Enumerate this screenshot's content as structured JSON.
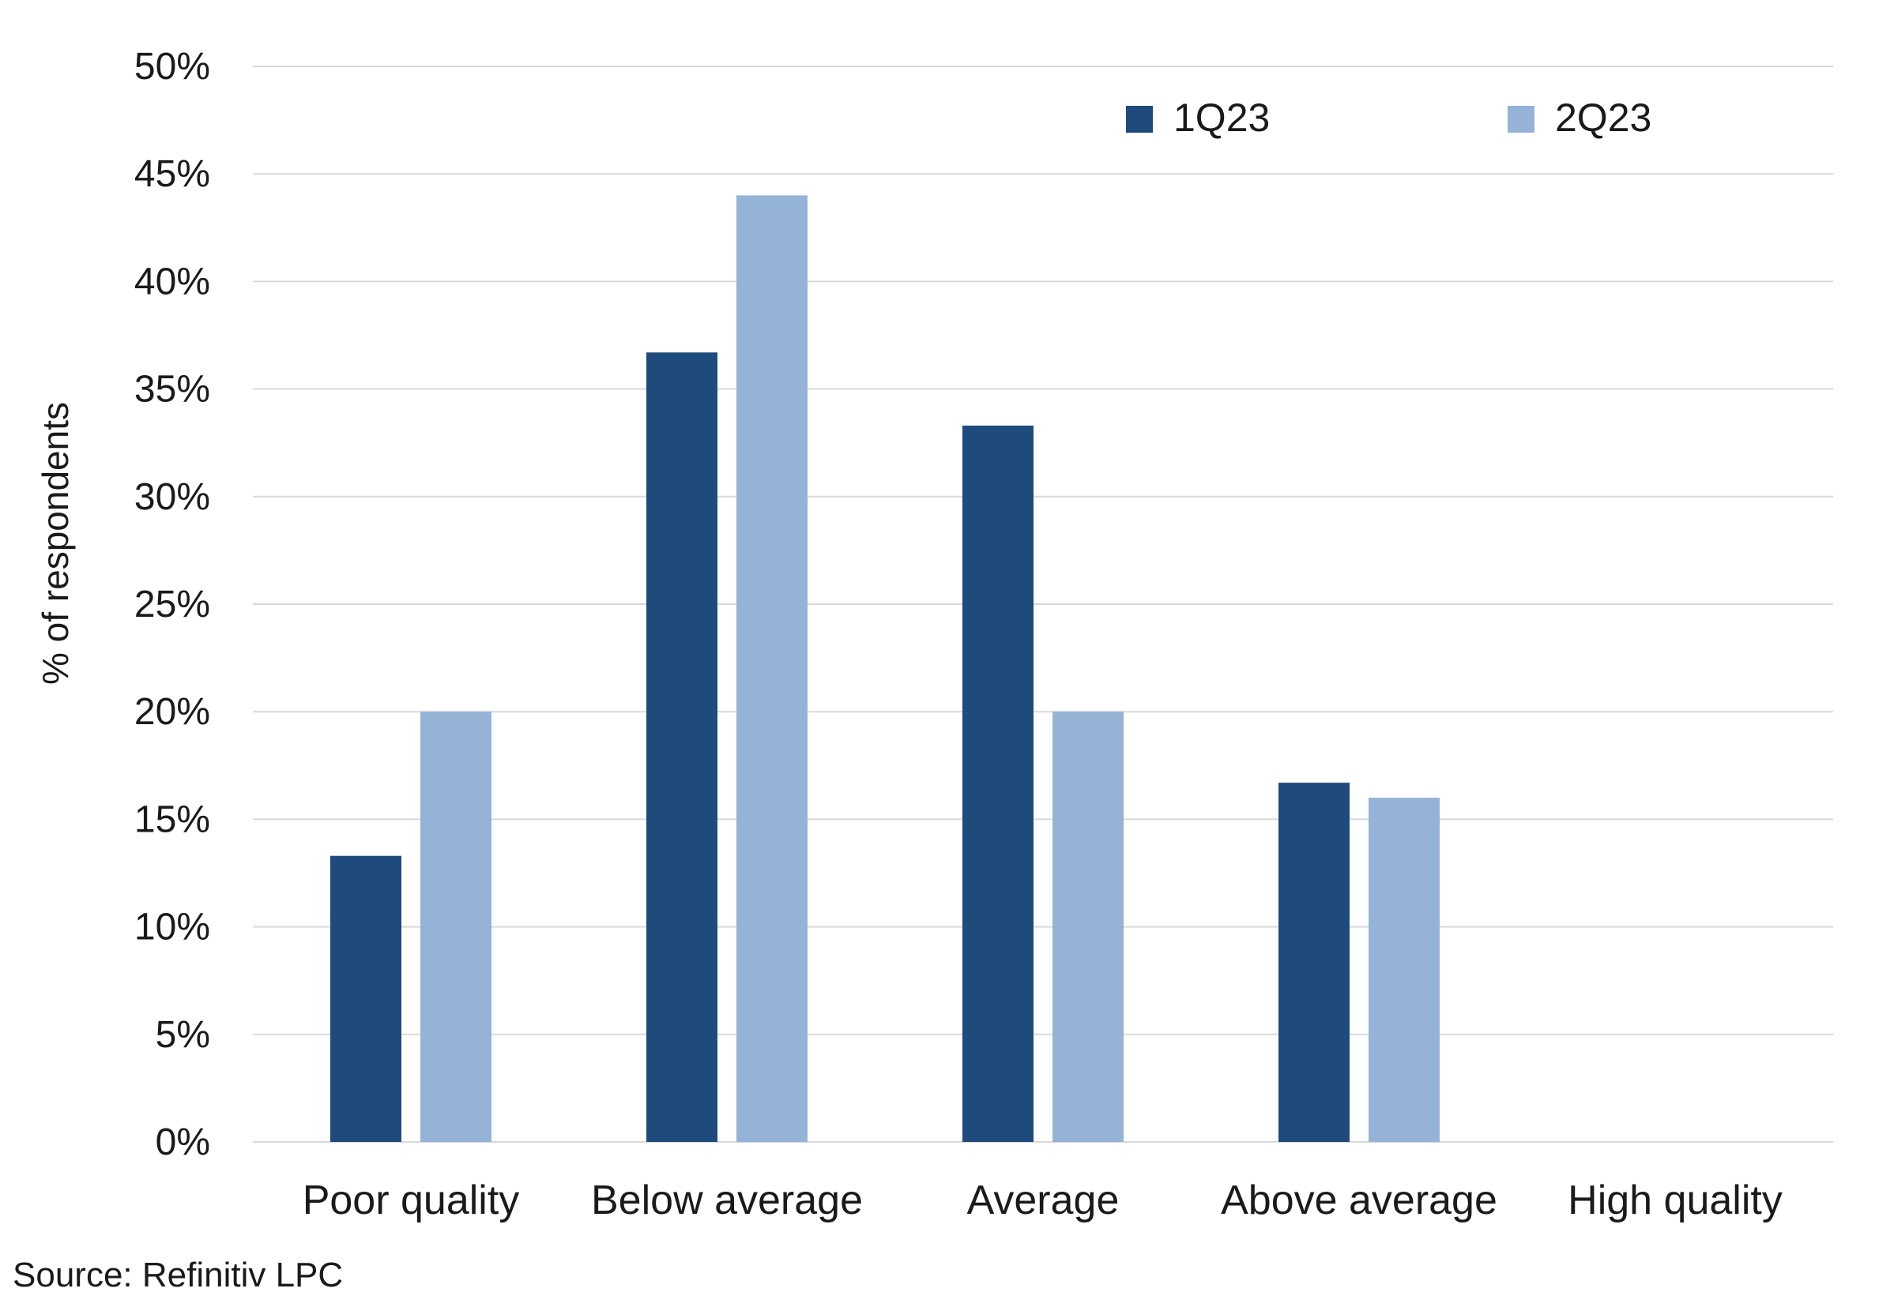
{
  "chart_data": {
    "type": "bar",
    "title": "",
    "xlabel": "",
    "ylabel": "% of respondents",
    "categories": [
      "Poor quality",
      "Below average",
      "Average",
      "Above average",
      "High quality"
    ],
    "series": [
      {
        "name": "1Q23",
        "values": [
          13.3,
          36.7,
          33.3,
          16.7,
          0
        ],
        "color": "#1f4a7c"
      },
      {
        "name": "2Q23",
        "values": [
          20.0,
          44.0,
          20.0,
          16.0,
          0
        ],
        "color": "#95b3d7"
      }
    ],
    "ylim": [
      0,
      50
    ],
    "yticks": [
      0,
      5,
      10,
      15,
      20,
      25,
      30,
      35,
      40,
      45,
      50
    ],
    "ytick_labels": [
      "0%",
      "5%",
      "10%",
      "15%",
      "20%",
      "25%",
      "30%",
      "35%",
      "40%",
      "45%",
      "50%"
    ],
    "grid": true,
    "legend_position": "top-right"
  },
  "source": "Source:  Refinitiv LPC"
}
